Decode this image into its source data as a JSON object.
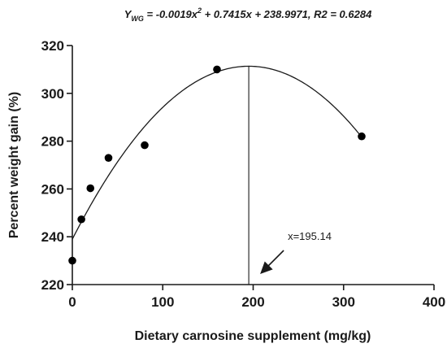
{
  "chart_data": {
    "type": "scatter",
    "equation": {
      "y": "Y",
      "sub": "WG",
      "part1": " = -0.0019x",
      "sup": "2",
      "part2": " + 0.7415x + 238.9971, R2 = 0.6284"
    },
    "xlabel": "Dietary carnosine supplement (mg/kg)",
    "ylabel": "Percent weight gain (%)",
    "xlim": [
      0,
      400
    ],
    "ylim": [
      220,
      320
    ],
    "xticks": [
      0,
      100,
      200,
      300,
      400
    ],
    "yticks": [
      220,
      240,
      260,
      280,
      300,
      320
    ],
    "xtick_labels": [
      "0",
      "100",
      "200",
      "300",
      "400"
    ],
    "ytick_labels": [
      "220",
      "240",
      "260",
      "280",
      "300",
      "320"
    ],
    "points": [
      {
        "x": 0,
        "y": 230
      },
      {
        "x": 10,
        "y": 247.3
      },
      {
        "x": 20,
        "y": 260.3
      },
      {
        "x": 40,
        "y": 273
      },
      {
        "x": 80,
        "y": 278.3
      },
      {
        "x": 160,
        "y": 310
      },
      {
        "x": 320,
        "y": 282
      }
    ],
    "fit": {
      "a": -0.0019,
      "b": 0.7415,
      "c": 238.9971,
      "x_start": 0,
      "x_end": 320
    },
    "optimum": {
      "x": 195.14,
      "label": "x=195.14"
    },
    "grid": false,
    "colors": {
      "axis": "#1a1a1a",
      "points": "#000000",
      "curve": "#1a1a1a"
    }
  }
}
